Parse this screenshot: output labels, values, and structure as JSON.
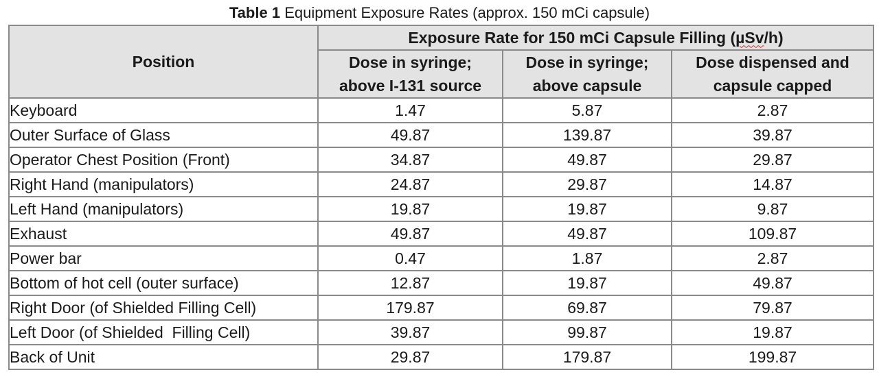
{
  "caption": {
    "label": "Table 1",
    "text": "Equipment Exposure Rates (approx. 150 mCi capsule)"
  },
  "table": {
    "position_header": "Position",
    "group_header": {
      "prefix": "Exposure Rate  for 150 mCi Capsule Filling (",
      "unit": "µSv",
      "suffix": "/h)"
    },
    "sub_headers": [
      {
        "line1": "Dose in syringe;",
        "line2": "above I-131 source"
      },
      {
        "line1": "Dose in syringe;",
        "line2": "above capsule"
      },
      {
        "line1": "Dose dispensed and",
        "line2": "capsule capped"
      }
    ],
    "rows": [
      {
        "position": "Keyboard",
        "values": [
          "1.47",
          "5.87",
          "2.87"
        ]
      },
      {
        "position": "Outer Surface of Glass",
        "values": [
          "49.87",
          "139.87",
          "39.87"
        ]
      },
      {
        "position": "Operator Chest Position (Front)",
        "values": [
          "34.87",
          "49.87",
          "29.87"
        ]
      },
      {
        "position": "Right Hand (manipulators)",
        "values": [
          "24.87",
          "29.87",
          "14.87"
        ]
      },
      {
        "position": "Left Hand (manipulators)",
        "values": [
          "19.87",
          "19.87",
          "9.87"
        ]
      },
      {
        "position": "Exhaust",
        "values": [
          "49.87",
          "49.87",
          "109.87"
        ]
      },
      {
        "position": "Power bar",
        "values": [
          "0.47",
          "1.87",
          "2.87"
        ]
      },
      {
        "position": "Bottom of hot cell (outer surface)",
        "values": [
          "12.87",
          "19.87",
          "49.87"
        ]
      },
      {
        "position": "Right Door (of Shielded Filling Cell)",
        "values": [
          "179.87",
          "69.87",
          "79.87"
        ]
      },
      {
        "position": "Left Door (of Shielded  Filling Cell)",
        "values": [
          "39.87",
          "99.87",
          "19.87"
        ]
      },
      {
        "position": "Back of Unit",
        "values": [
          "29.87",
          "179.87",
          "199.87"
        ]
      }
    ]
  },
  "colors": {
    "header_background": "#e3e3e3",
    "border": "#8a8a8a",
    "spellcheck_underline": "#d03030"
  }
}
